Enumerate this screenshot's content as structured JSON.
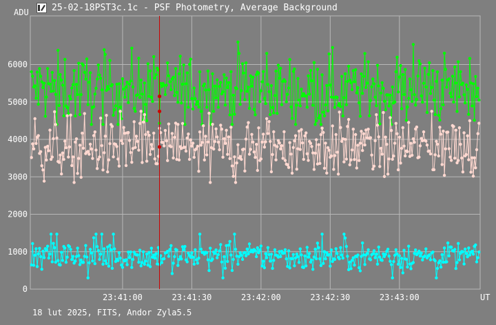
{
  "window": {
    "title": "25-02-18PST3c.1c - PSF Photometry, Average Background",
    "icon": "telescope-app-icon"
  },
  "footer": {
    "text": "18 lut 2025, FITS, Andor Zyla5.5"
  },
  "colors": {
    "background": "#7f7f7f",
    "grid": "#b8b8b8",
    "cursor": "#cc0000",
    "series_green": "#00ff00",
    "series_pink": "#ffd8d0",
    "series_cyan": "#00ffff"
  },
  "chart_data": {
    "type": "line",
    "title": "",
    "ylabel": "ADU",
    "xlabel": "UT",
    "x_unit": "UT time",
    "y_ticks": [
      "0",
      "1000",
      "2000",
      "3000",
      "4000",
      "5000",
      "6000"
    ],
    "x_ticks": [
      "23:41:00",
      "23:41:30",
      "23:42:00",
      "23:42:30",
      "23:43:00"
    ],
    "x_range": [
      "23:40:20",
      "23:43:35"
    ],
    "ylim": [
      0,
      7300
    ],
    "grid": true,
    "cursor_x": "23:41:16",
    "sampling": "about 1 sample per 0.5 s",
    "series": [
      {
        "color_key": "series_green",
        "mean": 5350,
        "typical_range": [
          4500,
          6300
        ],
        "min": 4400,
        "max": 6600,
        "marked_points": [
          {
            "x": "23:41:16",
            "y": 5150
          }
        ]
      },
      {
        "color_key": "series_pink",
        "mean": 3800,
        "typical_range": [
          3000,
          4600
        ],
        "min": 2450,
        "max": 4800,
        "marked_points": [
          {
            "x": "23:41:16",
            "y": 4750
          },
          {
            "x": "23:41:16",
            "y": 3800
          }
        ]
      },
      {
        "color_key": "series_cyan",
        "mean": 880,
        "typical_range": [
          500,
          1250
        ],
        "min": 300,
        "max": 1500,
        "marked_points": []
      }
    ]
  }
}
